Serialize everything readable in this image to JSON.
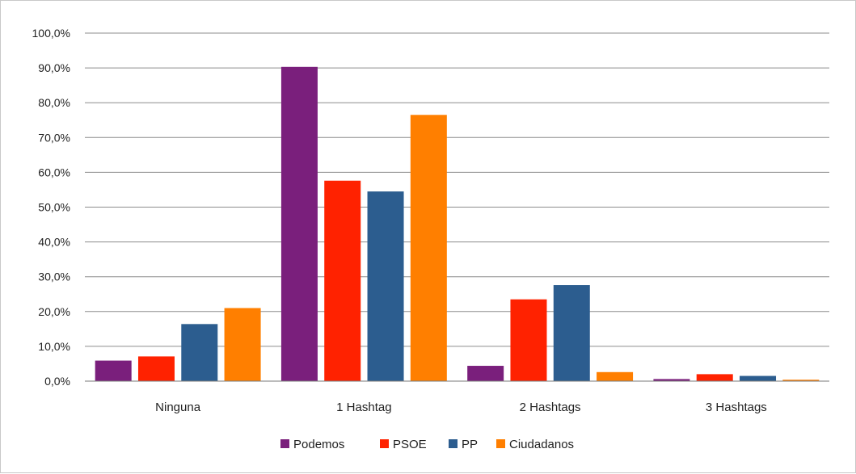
{
  "chart_data": {
    "type": "bar",
    "title": "",
    "xlabel": "",
    "ylabel": "",
    "categories": [
      "Ninguna",
      "1 Hashtag",
      "2 Hashtags",
      "3 Hashtags"
    ],
    "series": [
      {
        "name": "Podemos",
        "color": "#7a1f7c",
        "values": [
          5.9,
          90.3,
          4.4,
          0.6
        ]
      },
      {
        "name": "PSOE",
        "color": "#ff2200",
        "values": [
          7.1,
          57.6,
          23.5,
          2.0
        ]
      },
      {
        "name": "PP",
        "color": "#2c5d8f",
        "values": [
          16.4,
          54.5,
          27.6,
          1.5
        ]
      },
      {
        "name": "Ciudadanos",
        "color": "#ff7f00",
        "values": [
          21.0,
          76.5,
          2.6,
          0.4
        ]
      }
    ],
    "ylim": [
      0,
      100
    ],
    "yticks": [
      0,
      10,
      20,
      30,
      40,
      50,
      60,
      70,
      80,
      90,
      100
    ],
    "ytick_labels": [
      "0,0%",
      "10,0%",
      "20,0%",
      "30,0%",
      "40,0%",
      "50,0%",
      "60,0%",
      "70,0%",
      "80,0%",
      "90,0%",
      "100,0%"
    ],
    "grid": true,
    "legend_position": "bottom"
  }
}
